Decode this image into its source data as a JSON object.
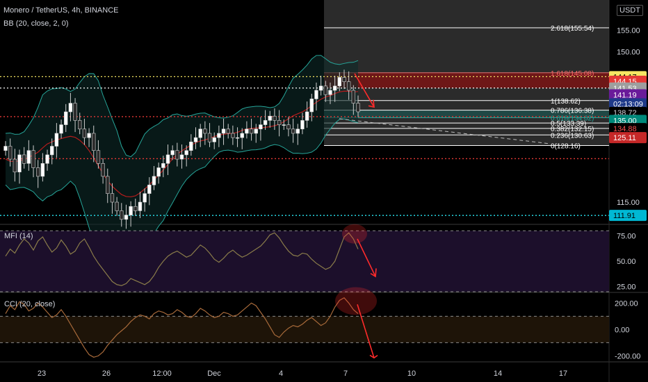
{
  "header": {
    "symbol_line": "Monero / TetherUS, 4h, BINANCE",
    "indicator_bb": "BB (20, close, 2, 0)",
    "currency_badge": "USDT"
  },
  "colors": {
    "background": "#000000",
    "up_candle": "#ffffff",
    "down_candle": "#2b2b2b",
    "bb_band": "#26a69a",
    "bb_basis": "#b71c1c",
    "fib_line": "#ffffff",
    "red_dotted": "#e53935",
    "yellow_dotted": "#f5e663",
    "cyan_dotted": "#29e6f2",
    "annotation_red": "#ff2b2b",
    "mfi_line": "#8a7c4a",
    "cci_line": "#a86a3a"
  },
  "chart_data": [
    {
      "type": "candlestick",
      "panel": "price",
      "symbol": "Monero / TetherUS",
      "interval": "4h",
      "exchange": "BINANCE",
      "y_axis_ticks": [
        115.0,
        150.0,
        155.0
      ],
      "ylim": [
        110.0,
        162.0
      ],
      "x_axis_ticks": [
        "23",
        "26",
        "12:00",
        "Dec",
        "4",
        "7",
        "10",
        "14",
        "17"
      ],
      "close_series": [
        128,
        125,
        122,
        126,
        124,
        127,
        123,
        121,
        124,
        126,
        128,
        131,
        133,
        136,
        138,
        134,
        132,
        130,
        131,
        127,
        124,
        121,
        117,
        115,
        113,
        111,
        112,
        114,
        113,
        115,
        117,
        119,
        121,
        123,
        124,
        126,
        127,
        125,
        126,
        127,
        129,
        130,
        132,
        131,
        129,
        130,
        131,
        132,
        131,
        130,
        130,
        131,
        132,
        131,
        132,
        133,
        134,
        135,
        134,
        133,
        133,
        132,
        131,
        132,
        134,
        136,
        139,
        141,
        142,
        140,
        141,
        142,
        144,
        143,
        141,
        138,
        136
      ],
      "fibonacci_levels": [
        {
          "label": "2.618(155.54)",
          "ratio": 2.618,
          "price": 155.54
        },
        {
          "label": "1.618(145.08)",
          "ratio": 1.618,
          "price": 145.08
        },
        {
          "label": "1(138.62)",
          "ratio": 1,
          "price": 138.62
        },
        {
          "label": "0.786(136.38)",
          "ratio": 0.786,
          "price": 136.38
        },
        {
          "label": "0.618(134.62)",
          "ratio": 0.618,
          "price": 134.62
        },
        {
          "label": "0.5(133.39)",
          "ratio": 0.5,
          "price": 133.39
        },
        {
          "label": "0.382(132.15)",
          "ratio": 0.382,
          "price": 132.15
        },
        {
          "label": "0.236(130.63)",
          "ratio": 0.236,
          "price": 130.63
        },
        {
          "label": "0(128.16)",
          "ratio": 0,
          "price": 128.16
        }
      ],
      "horizontal_lines": [
        {
          "price": 144.17,
          "style": "dotted",
          "color": "yellow"
        },
        {
          "price": 141.53,
          "style": "dotted",
          "color": "white"
        },
        {
          "price": 134.88,
          "style": "dotted",
          "color": "red"
        },
        {
          "price": 125.11,
          "style": "dotted",
          "color": "red"
        },
        {
          "price": 111.91,
          "style": "dotted",
          "color": "cyan"
        }
      ],
      "price_labels": [
        {
          "text": "144.17",
          "price": 144.17,
          "bg": "#f5e663",
          "fg": "#000000"
        },
        {
          "text": "144.15",
          "price": 143.1,
          "bg": "#e53935",
          "fg": "#ffffff"
        },
        {
          "text": "141.53",
          "price": 141.53,
          "bg": "#9e9e9e",
          "fg": "#ffffff"
        },
        {
          "text": "141.19",
          "price": 139.95,
          "bg": "#6a1b9a",
          "fg": "#ffffff"
        },
        {
          "text": "02:13:09",
          "price": 137.85,
          "bg": "#1f3a8a",
          "fg": "#ffffff"
        },
        {
          "text": "138.72",
          "price": 135.85,
          "bg": "#000000",
          "fg": "#d1d4dc"
        },
        {
          "text": "135.00",
          "price": 134.0,
          "bg": "#00897b",
          "fg": "#ffffff"
        },
        {
          "text": "134.88",
          "price": 132.1,
          "bg": "#000000",
          "fg": "#ff5252"
        },
        {
          "text": "125.11",
          "price": 130.0,
          "bg": "#c62828",
          "fg": "#ffffff"
        },
        {
          "text": "111.91",
          "price": 111.91,
          "bg": "#00b8d4",
          "fg": "#000000"
        }
      ],
      "bb_settings": "BB (20, close, 2, 0)"
    },
    {
      "type": "line",
      "panel": "mfi",
      "title": "MFI (14)",
      "ylim": [
        20,
        85
      ],
      "y_axis_ticks": [
        25.0,
        50.0,
        75.0
      ],
      "bands": [
        80,
        20
      ],
      "values": [
        55,
        62,
        58,
        66,
        72,
        68,
        61,
        70,
        74,
        66,
        59,
        63,
        71,
        65,
        57,
        60,
        68,
        72,
        64,
        55,
        48,
        42,
        36,
        30,
        27,
        26,
        28,
        33,
        31,
        29,
        27,
        30,
        36,
        44,
        50,
        55,
        58,
        60,
        57,
        54,
        56,
        61,
        66,
        63,
        58,
        52,
        49,
        53,
        58,
        61,
        57,
        54,
        56,
        59,
        62,
        65,
        70,
        76,
        78,
        73,
        66,
        60,
        56,
        55,
        58,
        57,
        52,
        48,
        45,
        42,
        44,
        50,
        62,
        74,
        78,
        72,
        62
      ]
    },
    {
      "type": "line",
      "panel": "cci",
      "title": "CCI (20, close)",
      "ylim": [
        -240,
        270
      ],
      "y_axis_ticks": [
        -200.0,
        0.0,
        200.0
      ],
      "bands": [
        100,
        -100
      ],
      "values": [
        120,
        180,
        150,
        210,
        190,
        140,
        160,
        200,
        170,
        130,
        90,
        110,
        150,
        100,
        40,
        -20,
        -80,
        -140,
        -190,
        -210,
        -200,
        -170,
        -120,
        -80,
        -40,
        -10,
        20,
        60,
        90,
        110,
        100,
        80,
        120,
        140,
        130,
        110,
        120,
        150,
        130,
        100,
        90,
        120,
        160,
        140,
        110,
        90,
        100,
        130,
        120,
        100,
        110,
        140,
        170,
        200,
        180,
        130,
        80,
        20,
        -40,
        -60,
        -20,
        10,
        30,
        20,
        40,
        70,
        90,
        60,
        30,
        50,
        100,
        170,
        220,
        240,
        200,
        150,
        120
      ]
    }
  ],
  "annotations": {
    "arrow_color": "#ff2b2b",
    "ellipse_color": "#ff2b2b"
  }
}
